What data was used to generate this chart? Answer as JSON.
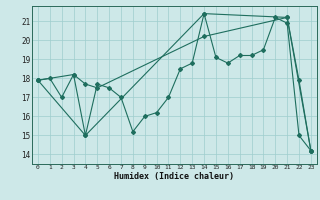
{
  "xlabel": "Humidex (Indice chaleur)",
  "bg_color": "#cde8e8",
  "grid_color": "#9ecece",
  "line_color": "#1e6e5e",
  "xlim": [
    -0.5,
    23.5
  ],
  "ylim": [
    13.5,
    21.8
  ],
  "yticks": [
    14,
    15,
    16,
    17,
    18,
    19,
    20,
    21
  ],
  "xticks": [
    0,
    1,
    2,
    3,
    4,
    5,
    6,
    7,
    8,
    9,
    10,
    11,
    12,
    13,
    14,
    15,
    16,
    17,
    18,
    19,
    20,
    21,
    22,
    23
  ],
  "series1": [
    [
      0,
      17.9
    ],
    [
      1,
      18.0
    ],
    [
      2,
      17.0
    ],
    [
      3,
      18.2
    ],
    [
      4,
      15.0
    ],
    [
      5,
      17.7
    ],
    [
      6,
      17.5
    ],
    [
      7,
      17.0
    ],
    [
      8,
      15.2
    ],
    [
      9,
      16.0
    ],
    [
      10,
      16.2
    ],
    [
      11,
      17.0
    ],
    [
      12,
      18.5
    ],
    [
      13,
      18.8
    ],
    [
      14,
      21.4
    ],
    [
      15,
      19.1
    ],
    [
      16,
      18.8
    ],
    [
      17,
      19.2
    ],
    [
      18,
      19.2
    ],
    [
      19,
      19.5
    ],
    [
      20,
      21.2
    ],
    [
      21,
      20.9
    ],
    [
      22,
      15.0
    ],
    [
      23,
      14.2
    ]
  ],
  "series2": [
    [
      0,
      17.9
    ],
    [
      3,
      18.2
    ],
    [
      4,
      17.7
    ],
    [
      5,
      17.5
    ],
    [
      14,
      20.2
    ],
    [
      21,
      21.2
    ],
    [
      23,
      14.2
    ]
  ],
  "series3": [
    [
      0,
      17.9
    ],
    [
      4,
      15.0
    ],
    [
      14,
      21.4
    ],
    [
      21,
      21.2
    ],
    [
      22,
      17.9
    ],
    [
      23,
      14.2
    ]
  ],
  "ms": 2.0,
  "lw": 0.8
}
